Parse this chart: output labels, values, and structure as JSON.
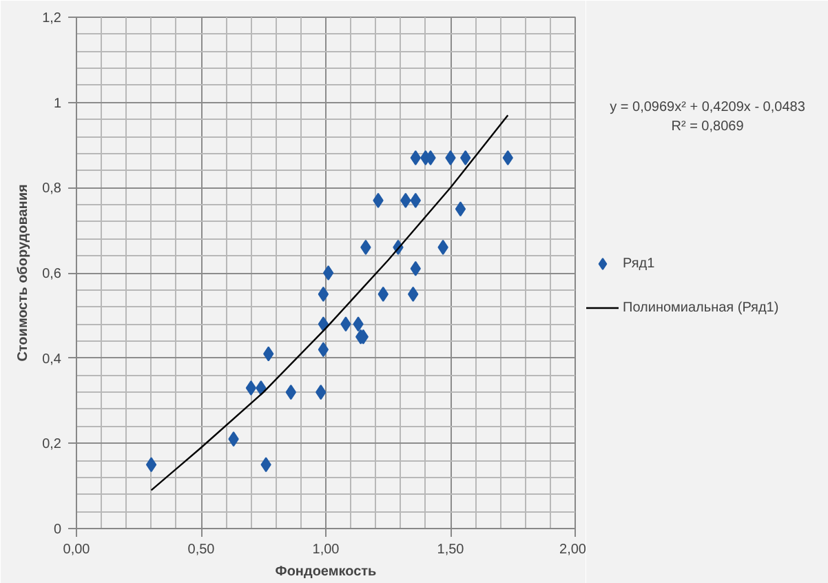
{
  "chart_data": {
    "type": "scatter",
    "xlabel": "Фондоемкость",
    "ylabel": "Стоимость оборудования",
    "xlim": [
      0,
      2
    ],
    "ylim": [
      0,
      1.2
    ],
    "xticks": [
      {
        "value": 0,
        "label": "0,00"
      },
      {
        "value": 0.5,
        "label": "0,50"
      },
      {
        "value": 1,
        "label": "1,00"
      },
      {
        "value": 1.5,
        "label": "1,50"
      },
      {
        "value": 2,
        "label": "2,00"
      }
    ],
    "yticks": [
      0,
      {
        "value": 0.2,
        "label": "0,2"
      },
      {
        "value": 0.4,
        "label": "0,4"
      },
      {
        "value": 0.6,
        "label": "0,6"
      },
      {
        "value": 0.8,
        "label": "0,8"
      },
      1,
      {
        "value": 1.2,
        "label": "1,2"
      }
    ],
    "grid": true,
    "legend": "right",
    "annotations": [
      "y = 0,0969x² + 0,4209x - 0,0483",
      "R² = 0,8069"
    ],
    "series": [
      {
        "name": "Ряд1",
        "marker": "diamond",
        "color": "#1f5aa6",
        "x": [
          0.3,
          0.63,
          0.76,
          0.7,
          0.74,
          0.77,
          0.86,
          0.98,
          0.99,
          0.99,
          0.99,
          1.01,
          1.08,
          1.13,
          1.14,
          1.15,
          1.23,
          1.35,
          1.36,
          1.16,
          1.29,
          1.47,
          1.21,
          1.32,
          1.36,
          1.54,
          1.36,
          1.4,
          1.42,
          1.5,
          1.56,
          1.73
        ],
        "values": [
          0.15,
          0.21,
          0.15,
          0.33,
          0.33,
          0.41,
          0.32,
          0.32,
          0.42,
          0.48,
          0.55,
          0.6,
          0.48,
          0.48,
          0.45,
          0.45,
          0.55,
          0.55,
          0.61,
          0.66,
          0.66,
          0.66,
          0.77,
          0.77,
          0.77,
          0.75,
          0.87,
          0.87,
          0.87,
          0.87,
          0.87,
          0.87
        ]
      },
      {
        "name": "Полиномиальная (Ряд1)",
        "type": "line",
        "color": "#000000",
        "line_style": "solid",
        "x": [
          0.3,
          0.5,
          0.75,
          1.0,
          1.25,
          1.5,
          1.73
        ],
        "values": [
          0.09,
          0.19,
          0.32,
          0.47,
          0.63,
          0.8,
          0.97
        ]
      }
    ]
  }
}
